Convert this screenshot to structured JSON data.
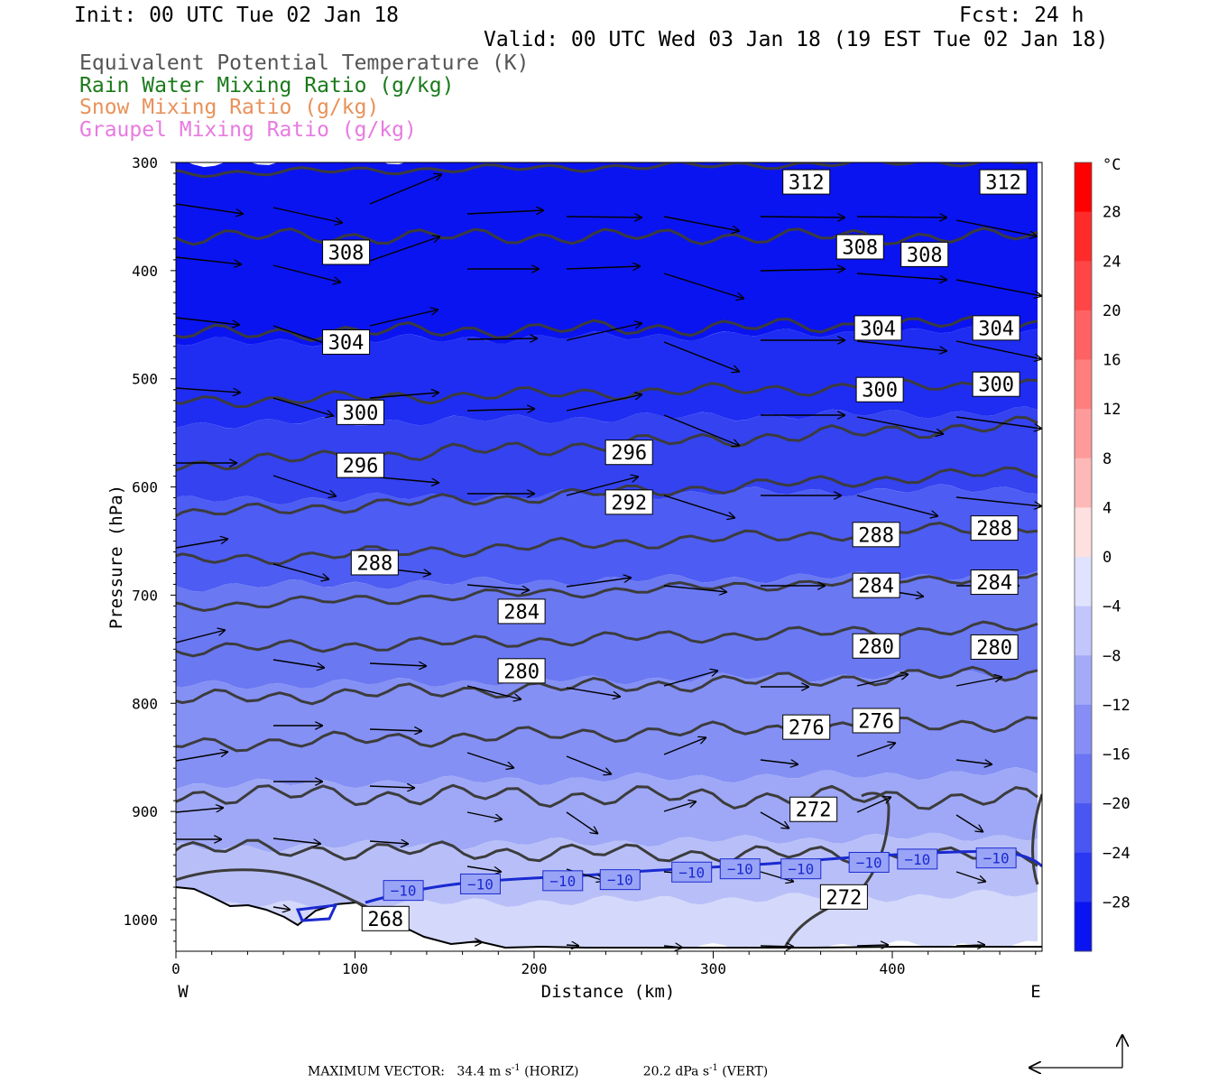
{
  "header": {
    "init": "Init: 00 UTC Tue 02 Jan 18",
    "fcst": "Fcst:   24 h",
    "valid": "Valid: 00 UTC Wed 03 Jan 18 (19 EST Tue 02 Jan 18)"
  },
  "fields": [
    {
      "label": "Equivalent Potential Temperature (K)",
      "color": "#555555"
    },
    {
      "label": "Rain Water Mixing Ratio (g/kg)",
      "color": "#1a7a1a"
    },
    {
      "label": "Snow Mixing Ratio (g/kg)",
      "color": "#e8925a"
    },
    {
      "label": "Graupel Mixing Ratio (g/kg)",
      "color": "#e87ae0"
    }
  ],
  "axes": {
    "ylabel": "Pressure (hPa)",
    "xlabel": "Distance (km)",
    "west": "W",
    "east": "E",
    "yticks": [
      "300",
      "400",
      "500",
      "600",
      "700",
      "800",
      "900",
      "1000"
    ],
    "xticks": [
      "0",
      "100",
      "200",
      "300",
      "400"
    ]
  },
  "colorbar": {
    "unit": "°C",
    "labels": [
      "28",
      "24",
      "20",
      "16",
      "12",
      "8",
      "4",
      "0",
      "-4",
      "-8",
      "-12",
      "-16",
      "-20",
      "-24",
      "-28"
    ]
  },
  "footer": {
    "max_vector_label": "MAXIMUM VECTOR:",
    "horiz_value": "34.4 m s",
    "horiz_exp": "-1",
    "horiz_tag": "(HORIZ)",
    "vert_value": "20.2 dPa s",
    "vert_exp": "-1",
    "vert_tag": "(VERT)"
  },
  "chart_data": {
    "type": "cross-section contour",
    "xlim": [
      0,
      485
    ],
    "ylim_hpa": [
      300,
      1030
    ],
    "y_scale": "linear, inverted (pressure)",
    "theta_e_contours_K": [
      {
        "value": 312,
        "labels": [
          [
            352,
            318
          ],
          [
            462,
            318
          ]
        ]
      },
      {
        "value": 308,
        "labels": [
          [
            95,
            383
          ],
          [
            382,
            378
          ],
          [
            418,
            385
          ]
        ]
      },
      {
        "value": 304,
        "labels": [
          [
            95,
            466
          ],
          [
            392,
            453
          ],
          [
            458,
            453
          ]
        ]
      },
      {
        "value": 300,
        "labels": [
          [
            103,
            531
          ],
          [
            393,
            510
          ],
          [
            458,
            505
          ]
        ]
      },
      {
        "value": 296,
        "labels": [
          [
            103,
            580
          ],
          [
            253,
            568
          ]
        ]
      },
      {
        "value": 292,
        "labels": [
          [
            253,
            614
          ]
        ]
      },
      {
        "value": 288,
        "labels": [
          [
            111,
            670
          ],
          [
            391,
            644
          ],
          [
            457,
            638
          ]
        ]
      },
      {
        "value": 284,
        "labels": [
          [
            193,
            715
          ],
          [
            391,
            691
          ],
          [
            457,
            688
          ]
        ]
      },
      {
        "value": 280,
        "labels": [
          [
            193,
            770
          ],
          [
            391,
            747
          ],
          [
            457,
            748
          ]
        ]
      },
      {
        "value": 276,
        "labels": [
          [
            352,
            822
          ],
          [
            391,
            816
          ]
        ]
      },
      {
        "value": 272,
        "labels": [
          [
            356,
            898
          ],
          [
            373,
            979
          ]
        ]
      },
      {
        "value": 268,
        "labels": [
          [
            117,
            999
          ]
        ]
      }
    ],
    "temperature_contour_C": [
      {
        "value": -10,
        "labels": [
          [
            127,
            973
          ],
          [
            170,
            967
          ],
          [
            216,
            964
          ],
          [
            248,
            963
          ],
          [
            288,
            956
          ],
          [
            315,
            953
          ],
          [
            349,
            953
          ],
          [
            387,
            947
          ],
          [
            414,
            944
          ],
          [
            458,
            943
          ]
        ]
      }
    ],
    "colorbar_range_C": [
      -32,
      32
    ],
    "colorbar_step_C": 4
  }
}
